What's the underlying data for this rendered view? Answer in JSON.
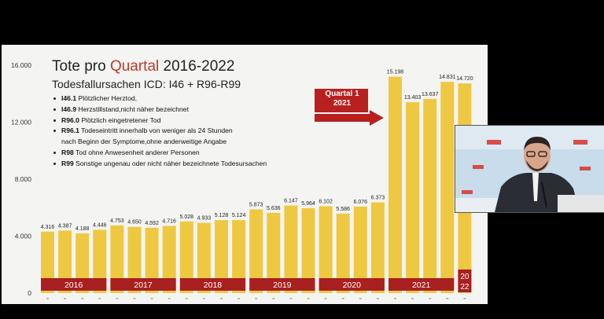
{
  "slide": {
    "title_part1": "Tote pro ",
    "title_accent": "Quartal",
    "title_part2": " 2016-2022",
    "subtitle": "Todesfallursachen ICD: I46 + R96-R99",
    "legend": [
      {
        "code": "I46.1",
        "text": " Plötzlicher Herztod,"
      },
      {
        "code": "I46.9",
        "text": " Herzstillstand,nicht näher bezeichnet"
      },
      {
        "code": "R96.0",
        "text": " Plötzlich eingetretener Tod"
      },
      {
        "code": "R96.1",
        "text": " Todeseintritt innerhalb von weniger als 24 Stunden"
      },
      {
        "code": "",
        "text": "nach Beginn der Symptome,ohne anderweitige Angabe"
      },
      {
        "code": "R98",
        "text": " Tod ohne Anwesenheit anderer Personen"
      },
      {
        "code": "R99",
        "text": " Sonstige ungenau oder nicht näher bezeichnete Todesursachen"
      }
    ],
    "arrow_label_line1": "Quartal 1",
    "arrow_label_line2": "2021",
    "colors": {
      "bar": "#efc842",
      "year_band": "#a8201f",
      "title_accent": "#c0392b",
      "arrow": "#b81f1f"
    }
  },
  "chart_data": {
    "type": "bar",
    "y_ticks": [
      "0",
      "4.000",
      "8.000",
      "12.000",
      "16.000"
    ],
    "ylim": [
      0,
      16000
    ],
    "values": [
      4316,
      4387,
      4188,
      4446,
      4753,
      4650,
      4592,
      4716,
      5028,
      4933,
      5128,
      5124,
      5873,
      5636,
      6147,
      5964,
      6102,
      5586,
      6076,
      6373,
      15198,
      13403,
      13637,
      14831,
      14720
    ],
    "value_labels": [
      "4.316",
      "4.387",
      "4.188",
      "4.446",
      "4.753",
      "4.650",
      "4.592",
      "4.716",
      "5.028",
      "4.933",
      "5.128",
      "5.124",
      "5.873",
      "5.636",
      "6.147",
      "5.964",
      "6.102",
      "5.586",
      "6.076",
      "6.373",
      "15.198",
      "13.403",
      "13.637",
      "14.831",
      "14.720"
    ],
    "years": [
      {
        "label": "2016",
        "bars": 4
      },
      {
        "label": "2017",
        "bars": 4
      },
      {
        "label": "2018",
        "bars": 4
      },
      {
        "label": "2019",
        "bars": 4
      },
      {
        "label": "2020",
        "bars": 4
      },
      {
        "label": "2021",
        "bars": 4
      },
      {
        "label_line1": "20",
        "label_line2": "22",
        "bars": 1
      }
    ]
  }
}
